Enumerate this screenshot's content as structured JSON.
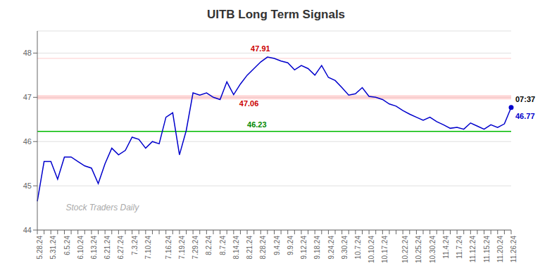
{
  "chart_data": {
    "type": "line",
    "title": "UITB Long Term Signals",
    "categories": [
      "5.28.24",
      null,
      "5.31.24",
      null,
      "6.5.24",
      null,
      "6.10.24",
      null,
      "6.13.24",
      null,
      "6.21.24",
      null,
      "6.27.24",
      null,
      "7.3.24",
      null,
      "7.10.24",
      null,
      null,
      "7.16.24",
      null,
      "7.19.24",
      null,
      "7.29.24",
      null,
      "8.2.24",
      null,
      "8.7.24",
      null,
      "8.14.24",
      null,
      "8.21.24",
      null,
      "8.28.24",
      null,
      "9.4.24",
      null,
      "9.9.24",
      null,
      "9.12.24",
      null,
      "9.18.24",
      null,
      "9.24.24",
      null,
      "9.30.24",
      null,
      "10.7.24",
      null,
      "10.10.24",
      null,
      "10.17.24",
      null,
      null,
      "10.22.24",
      null,
      "10.25.24",
      null,
      "10.30.24",
      null,
      "11.4.24",
      null,
      "11.7.24",
      null,
      "11.12.24",
      null,
      "11.15.24",
      null,
      "11.20.24",
      null,
      "11.26.24"
    ],
    "values": [
      44.65,
      45.55,
      45.55,
      45.15,
      45.65,
      45.65,
      45.55,
      45.45,
      45.4,
      45.05,
      45.5,
      45.85,
      45.7,
      45.8,
      46.1,
      46.05,
      45.85,
      46.0,
      45.95,
      46.55,
      46.65,
      45.7,
      46.25,
      47.1,
      47.05,
      47.1,
      47.0,
      46.95,
      47.35,
      47.06,
      47.3,
      47.5,
      47.65,
      47.8,
      47.91,
      47.88,
      47.82,
      47.78,
      47.62,
      47.72,
      47.65,
      47.5,
      47.72,
      47.45,
      47.38,
      47.22,
      47.05,
      47.08,
      47.22,
      47.02,
      47.0,
      46.95,
      46.85,
      46.8,
      46.7,
      46.62,
      46.55,
      46.48,
      46.55,
      46.45,
      46.38,
      46.3,
      46.32,
      46.28,
      46.42,
      46.35,
      46.28,
      46.38,
      46.32,
      46.4,
      46.77
    ],
    "color": "#0000cc",
    "ylim": [
      44,
      48.5
    ],
    "yticks": [
      44,
      45,
      46,
      47,
      48
    ],
    "grid": true,
    "hlines": [
      {
        "value": 47.0,
        "color": "#ffb0b0"
      },
      {
        "value": 47.88,
        "color": "#ffaaaa"
      },
      {
        "value": 46.23,
        "color": "#00bb00"
      }
    ],
    "annotations": [
      {
        "text": "47.91",
        "x": 34,
        "y": 47.91,
        "color": "#cc0000"
      },
      {
        "text": "47.06",
        "x": 29,
        "y": 47.06,
        "color": "#cc0000"
      },
      {
        "text": "46.23",
        "x": 31,
        "y": 46.23,
        "color": "#008800"
      },
      {
        "text": "07:37",
        "x": 70,
        "y": 46.77,
        "color": "#000000"
      },
      {
        "text": "46.77",
        "x": 70,
        "y": 46.77,
        "color": "#0000cc"
      }
    ],
    "watermark": {
      "text": "Stock Traders Daily",
      "color": "#aaaaaa"
    }
  }
}
